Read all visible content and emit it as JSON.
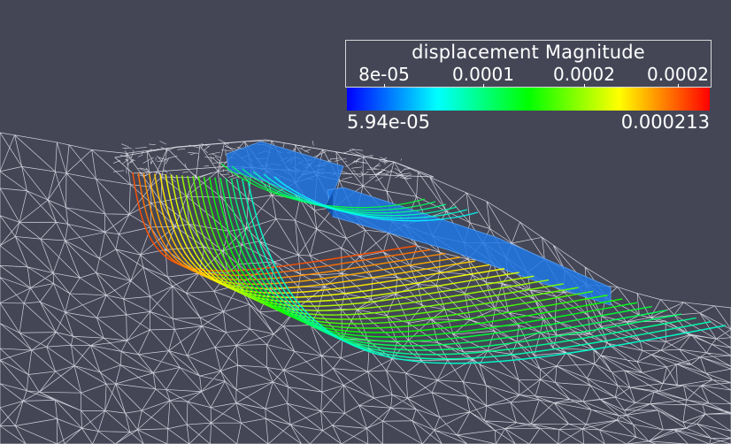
{
  "colors": {
    "background": "#444656",
    "mesh": "#e8e8ee",
    "block": "#1e78e6",
    "colormap": [
      "#0000ff",
      "#00ffff",
      "#00ff00",
      "#ffff00",
      "#ff0000"
    ]
  },
  "scalar_bar": {
    "title": "displacement Magnitude",
    "ticks": [
      {
        "label": "8e-05"
      },
      {
        "label": "0.0001"
      },
      {
        "label": "0.0002"
      },
      {
        "label": "0.0002"
      }
    ],
    "range_min": "5.94e-05",
    "range_max": "0.000213"
  },
  "scene": {
    "mesh_style": "wireframe",
    "block_count": 2,
    "streamline_count": 22
  }
}
